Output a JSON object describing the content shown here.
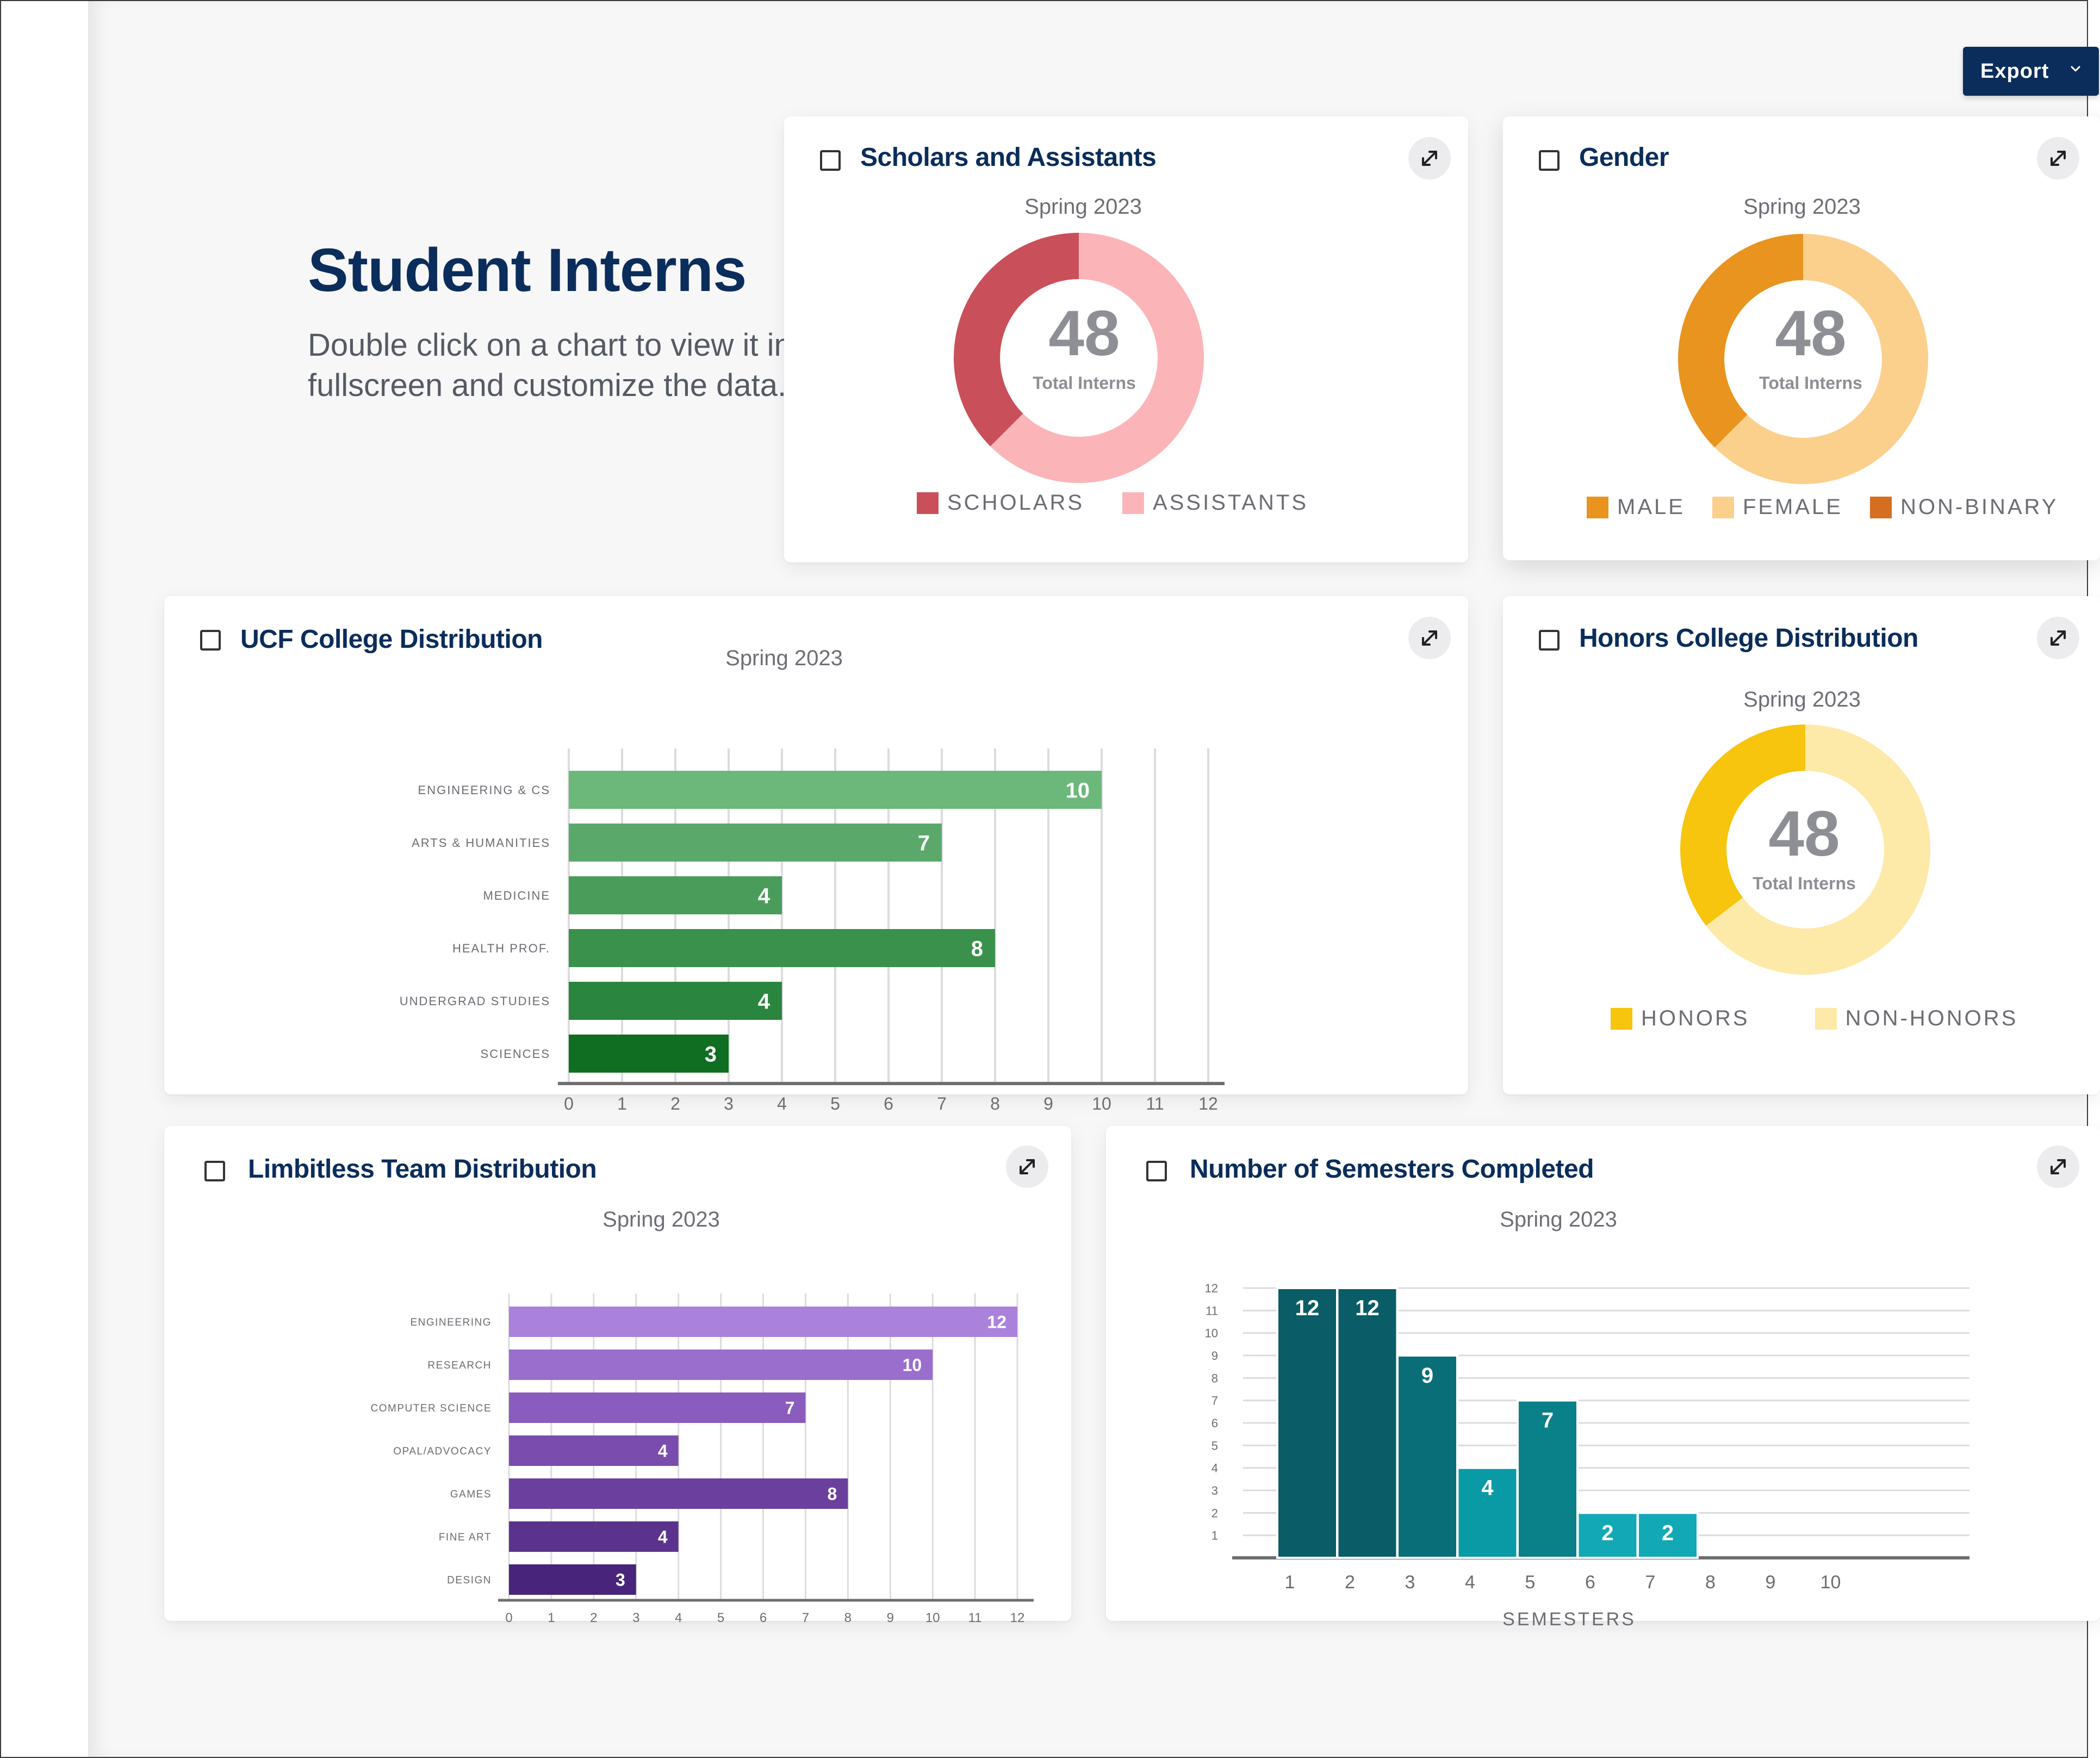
{
  "header": {
    "export_label": "Export",
    "title": "Student Interns",
    "subtitle": "Double click on a chart to view it in fullscreen and customize the data."
  },
  "colors": {
    "brand_navy": "#0b2d5b",
    "scholars": "#c9505a",
    "assistants": "#fbb5b9",
    "male": "#e8941f",
    "female": "#fbd08c",
    "non_binary": "#d46f22",
    "honors": "#f7c40e",
    "non_honors": "#fde9a8"
  },
  "cards": {
    "scholars": {
      "title": "Scholars and Assistants",
      "period": "Spring 2023",
      "total": "48",
      "total_label": "Total Interns",
      "legend": [
        "SCHOLARS",
        "ASSISTANTS"
      ]
    },
    "gender": {
      "title": "Gender",
      "period": "Spring 2023",
      "total": "48",
      "total_label": "Total Interns",
      "legend": [
        "MALE",
        "FEMALE",
        "NON-BINARY"
      ]
    },
    "ucf": {
      "title": "UCF College Distribution",
      "period": "Spring 2023"
    },
    "honors": {
      "title": "Honors College Distribution",
      "period": "Spring 2023",
      "total": "48",
      "total_label": "Total Interns",
      "legend": [
        "HONORS",
        "NON-HONORS"
      ]
    },
    "limbitless": {
      "title": "Limbitless Team Distribution",
      "period": "Spring 2023"
    },
    "semesters": {
      "title": "Number of Semesters Completed",
      "period": "Spring 2023"
    }
  },
  "chart_data": [
    {
      "id": "scholars",
      "type": "pie",
      "categories": [
        "SCHOLARS",
        "ASSISTANTS"
      ],
      "values": [
        18,
        30
      ],
      "colors": [
        "#c9505a",
        "#fbb5b9"
      ],
      "title": "Scholars and Assistants",
      "subtitle": "Spring 2023",
      "legend_position": "bottom"
    },
    {
      "id": "gender",
      "type": "pie",
      "categories": [
        "MALE",
        "FEMALE",
        "NON-BINARY"
      ],
      "values": [
        18,
        30,
        0
      ],
      "colors": [
        "#e8941f",
        "#fbd08c",
        "#d46f22"
      ],
      "title": "Gender",
      "subtitle": "Spring 2023",
      "legend_position": "bottom"
    },
    {
      "id": "ucf",
      "type": "bar",
      "orientation": "horizontal",
      "categories": [
        "ENGINEERING & CS",
        "ARTS & HUMANITIES",
        "MEDICINE",
        "HEALTH PROF.",
        "UNDERGRAD STUDIES",
        "SCIENCES"
      ],
      "values": [
        10,
        7,
        4,
        8,
        4,
        3
      ],
      "colors": [
        "#6bb87a",
        "#5aa96b",
        "#4a9c5b",
        "#3a914c",
        "#2a853e",
        "#0f6e22"
      ],
      "title": "UCF College Distribution",
      "subtitle": "Spring 2023",
      "xlim": [
        0,
        12
      ],
      "xticks": [
        0,
        1,
        2,
        3,
        4,
        5,
        6,
        7,
        8,
        9,
        10,
        11,
        12
      ],
      "grid": true
    },
    {
      "id": "honors",
      "type": "pie",
      "categories": [
        "HONORS",
        "NON-HONORS"
      ],
      "values": [
        17,
        31
      ],
      "colors": [
        "#f7c40e",
        "#fde9a8"
      ],
      "title": "Honors College Distribution",
      "subtitle": "Spring 2023",
      "legend_position": "bottom"
    },
    {
      "id": "limbitless",
      "type": "bar",
      "orientation": "horizontal",
      "categories": [
        "ENGINEERING",
        "RESEARCH",
        "COMPUTER SCIENCE",
        "OPAL/ADVOCACY",
        "GAMES",
        "FINE ART",
        "DESIGN"
      ],
      "values": [
        12,
        10,
        7,
        4,
        8,
        4,
        3
      ],
      "colors": [
        "#ab82db",
        "#9a6ecd",
        "#8a5cbd",
        "#7a4cad",
        "#6a3f9e",
        "#5b338d",
        "#48247a"
      ],
      "title": "Limbitless Team Distribution",
      "subtitle": "Spring 2023",
      "xlim": [
        0,
        12
      ],
      "xticks": [
        0,
        1,
        2,
        3,
        4,
        5,
        6,
        7,
        8,
        9,
        10,
        11,
        12
      ],
      "grid": true
    },
    {
      "id": "semesters",
      "type": "bar",
      "orientation": "vertical",
      "categories": [
        "1",
        "2",
        "3",
        "4",
        "5",
        "6",
        "7",
        "8",
        "9",
        "10"
      ],
      "values": [
        12,
        12,
        9,
        4,
        7,
        2,
        2,
        null,
        null,
        null
      ],
      "colors": [
        "#0a5d66",
        "#0a5d66",
        "#0a6e79",
        "#0a9aa6",
        "#0a8088",
        "#12a8b6",
        "#12a8b6"
      ],
      "title": "Number of Semesters Completed",
      "subtitle": "Spring 2023",
      "xlabel": "SEMESTERS",
      "ylim": [
        0,
        12
      ],
      "yticks": [
        1,
        2,
        3,
        4,
        5,
        6,
        7,
        8,
        9,
        10,
        11,
        12
      ],
      "grid": true
    }
  ]
}
